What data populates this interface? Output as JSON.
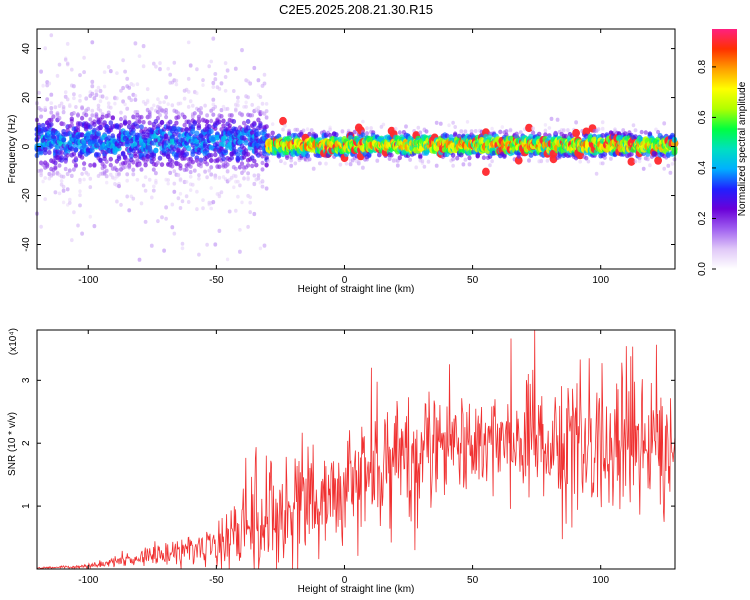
{
  "figure": {
    "title": "C2E5.2025.208.21.30.R15"
  },
  "chart_data": [
    {
      "type": "heatmap",
      "xlabel": "Height of straight line (km)",
      "ylabel": "Frequency (Hz)",
      "xlim": [
        -120,
        129
      ],
      "ylim": [
        -50,
        48
      ],
      "xticks": [
        -100,
        -50,
        0,
        50,
        100
      ],
      "yticks": [
        -40,
        -20,
        0,
        20,
        40
      ],
      "colorbar": {
        "label": "Normalized spectral amplitude",
        "range": [
          0,
          0.95
        ],
        "ticks": [
          "0.0",
          "0.2",
          "0.4",
          "0.6",
          "0.8"
        ],
        "colormap": [
          "#ffffff",
          "#e0c8f8",
          "#a060f0",
          "#6a00d8",
          "#2020ff",
          "#00b0ff",
          "#00e0c0",
          "#00ff40",
          "#b0ff00",
          "#ffff00",
          "#ffa000",
          "#ff3000",
          "#ff2080"
        ]
      },
      "ridge": {
        "description_segments": [
          {
            "x_range": [
              -120,
              -30
            ],
            "center_freq": 2,
            "spread": 8,
            "peak_amplitude": 0.45
          },
          {
            "x_range": [
              -30,
              129
            ],
            "center_freq": 0.5,
            "spread": 3,
            "peak_amplitude": 0.85
          }
        ]
      }
    },
    {
      "type": "line",
      "xlabel": "Height of straight line (km)",
      "ylabel": "SNR (10 * v/v)",
      "y_multiplier": "(x10⁴)",
      "xlim": [
        -120,
        129
      ],
      "ylim": [
        0,
        3.8
      ],
      "xticks": [
        -100,
        -50,
        0,
        50,
        100
      ],
      "yticks": [
        1,
        2,
        3
      ],
      "color": "#f03030",
      "envelope": {
        "x": [
          -120,
          -110,
          -100,
          -90,
          -80,
          -70,
          -60,
          -50,
          -40,
          -30,
          -20,
          -10,
          0,
          10,
          20,
          30,
          40,
          50,
          60,
          70,
          80,
          90,
          100,
          110,
          120,
          129
        ],
        "mean": [
          0.01,
          0.03,
          0.05,
          0.1,
          0.18,
          0.25,
          0.3,
          0.4,
          0.6,
          0.85,
          1.0,
          1.15,
          1.3,
          1.5,
          1.7,
          1.9,
          2.0,
          2.05,
          2.1,
          2.05,
          2.0,
          2.0,
          1.95,
          1.9,
          1.9,
          1.95
        ],
        "noise": [
          0.005,
          0.01,
          0.02,
          0.04,
          0.07,
          0.1,
          0.12,
          0.2,
          0.35,
          0.5,
          0.55,
          0.5,
          0.45,
          0.45,
          0.5,
          0.5,
          0.45,
          0.45,
          0.4,
          0.4,
          0.45,
          0.5,
          0.6,
          0.65,
          0.6,
          0.55
        ]
      }
    }
  ]
}
